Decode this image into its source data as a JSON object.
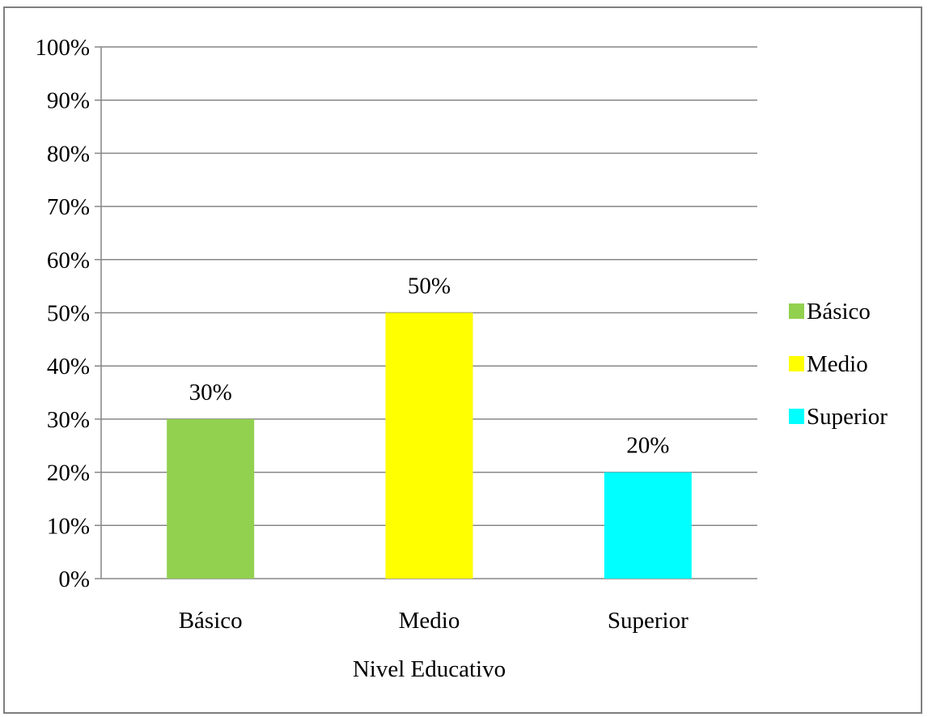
{
  "chart_data": {
    "type": "bar",
    "categories": [
      "Básico",
      "Medio",
      "Superior"
    ],
    "values": [
      30,
      50,
      20
    ],
    "data_labels": [
      "30%",
      "50%",
      "20%"
    ],
    "colors": [
      "#92d050",
      "#ffff00",
      "#00ffff"
    ],
    "xlabel": "Nivel Educativo",
    "ylabel": "",
    "ylim": [
      0,
      100
    ],
    "yticks": [
      "0%",
      "10%",
      "20%",
      "30%",
      "40%",
      "50%",
      "60%",
      "70%",
      "80%",
      "90%",
      "100%"
    ],
    "grid": true,
    "legend": {
      "placement": "right",
      "entries": [
        "Básico",
        "Medio",
        "Superior"
      ]
    }
  }
}
